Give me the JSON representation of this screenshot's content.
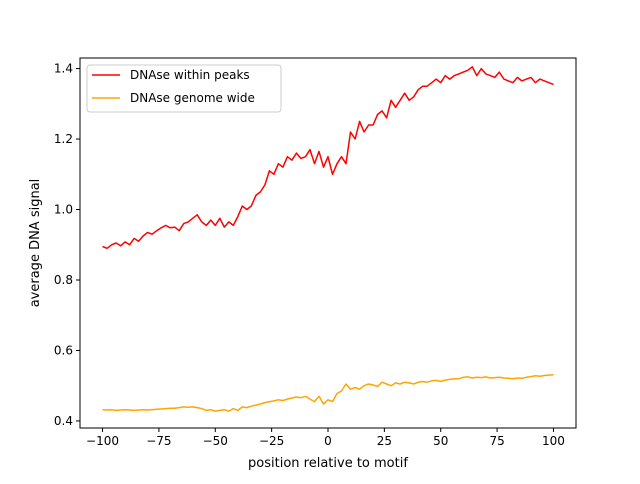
{
  "chart_data": {
    "type": "line",
    "title": "",
    "xlabel": "position relative to motif",
    "ylabel": "average DNA signal",
    "xlim": [
      -110,
      110
    ],
    "ylim": [
      0.38,
      1.43
    ],
    "grid": false,
    "legend_position": "top-left",
    "x_ticks": [
      -100,
      -75,
      -50,
      -25,
      0,
      25,
      50,
      75,
      100
    ],
    "x_tick_labels": [
      "−100",
      "−75",
      "−50",
      "−25",
      "0",
      "25",
      "50",
      "75",
      "100"
    ],
    "y_ticks": [
      0.4,
      0.6,
      0.8,
      1.0,
      1.2,
      1.4
    ],
    "y_tick_labels": [
      "0.4",
      "0.6",
      "0.8",
      "1.0",
      "1.2",
      "1.4"
    ],
    "series": [
      {
        "name": "DNAse within peaks",
        "color": "#ff0000",
        "x": [
          -100,
          -98,
          -96,
          -94,
          -92,
          -90,
          -88,
          -86,
          -84,
          -82,
          -80,
          -78,
          -76,
          -74,
          -72,
          -70,
          -68,
          -66,
          -64,
          -62,
          -60,
          -58,
          -56,
          -54,
          -52,
          -50,
          -48,
          -46,
          -44,
          -42,
          -40,
          -38,
          -36,
          -34,
          -32,
          -30,
          -28,
          -26,
          -24,
          -22,
          -20,
          -18,
          -16,
          -14,
          -12,
          -10,
          -8,
          -6,
          -4,
          -2,
          0,
          2,
          4,
          6,
          8,
          10,
          12,
          14,
          16,
          18,
          20,
          22,
          24,
          26,
          28,
          30,
          32,
          34,
          36,
          38,
          40,
          42,
          44,
          46,
          48,
          50,
          52,
          54,
          56,
          58,
          60,
          62,
          64,
          66,
          68,
          70,
          72,
          74,
          76,
          78,
          80,
          82,
          84,
          86,
          88,
          90,
          92,
          94,
          96,
          98,
          100
        ],
        "values": [
          0.895,
          0.89,
          0.9,
          0.905,
          0.897,
          0.908,
          0.9,
          0.918,
          0.91,
          0.925,
          0.935,
          0.93,
          0.94,
          0.948,
          0.955,
          0.948,
          0.95,
          0.94,
          0.96,
          0.965,
          0.975,
          0.985,
          0.965,
          0.955,
          0.97,
          0.955,
          0.975,
          0.95,
          0.965,
          0.955,
          0.98,
          1.01,
          1.0,
          1.01,
          1.04,
          1.05,
          1.07,
          1.11,
          1.1,
          1.13,
          1.12,
          1.15,
          1.14,
          1.16,
          1.145,
          1.15,
          1.17,
          1.13,
          1.165,
          1.12,
          1.15,
          1.1,
          1.13,
          1.15,
          1.13,
          1.22,
          1.2,
          1.25,
          1.22,
          1.24,
          1.24,
          1.27,
          1.28,
          1.26,
          1.31,
          1.29,
          1.31,
          1.33,
          1.31,
          1.32,
          1.34,
          1.35,
          1.35,
          1.36,
          1.37,
          1.36,
          1.38,
          1.37,
          1.38,
          1.385,
          1.39,
          1.395,
          1.405,
          1.38,
          1.4,
          1.385,
          1.38,
          1.375,
          1.39,
          1.37,
          1.365,
          1.36,
          1.375,
          1.365,
          1.37,
          1.375,
          1.36,
          1.37,
          1.365,
          1.36,
          1.355
        ]
      },
      {
        "name": "DNAse genome wide",
        "color": "#ffa500",
        "x": [
          -100,
          -98,
          -96,
          -94,
          -92,
          -90,
          -88,
          -86,
          -84,
          -82,
          -80,
          -78,
          -76,
          -74,
          -72,
          -70,
          -68,
          -66,
          -64,
          -62,
          -60,
          -58,
          -56,
          -54,
          -52,
          -50,
          -48,
          -46,
          -44,
          -42,
          -40,
          -38,
          -36,
          -34,
          -32,
          -30,
          -28,
          -26,
          -24,
          -22,
          -20,
          -18,
          -16,
          -14,
          -12,
          -10,
          -8,
          -6,
          -4,
          -2,
          0,
          2,
          4,
          6,
          8,
          10,
          12,
          14,
          16,
          18,
          20,
          22,
          24,
          26,
          28,
          30,
          32,
          34,
          36,
          38,
          40,
          42,
          44,
          46,
          48,
          50,
          52,
          54,
          56,
          58,
          60,
          62,
          64,
          66,
          68,
          70,
          72,
          74,
          76,
          78,
          80,
          82,
          84,
          86,
          88,
          90,
          92,
          94,
          96,
          98,
          100
        ],
        "values": [
          0.432,
          0.431,
          0.432,
          0.43,
          0.431,
          0.432,
          0.431,
          0.43,
          0.431,
          0.432,
          0.431,
          0.432,
          0.433,
          0.434,
          0.435,
          0.436,
          0.436,
          0.438,
          0.44,
          0.439,
          0.44,
          0.438,
          0.435,
          0.43,
          0.432,
          0.428,
          0.43,
          0.432,
          0.428,
          0.435,
          0.43,
          0.44,
          0.438,
          0.442,
          0.445,
          0.448,
          0.452,
          0.455,
          0.457,
          0.46,
          0.458,
          0.462,
          0.465,
          0.468,
          0.466,
          0.47,
          0.462,
          0.455,
          0.47,
          0.448,
          0.46,
          0.455,
          0.478,
          0.485,
          0.505,
          0.49,
          0.495,
          0.49,
          0.5,
          0.505,
          0.502,
          0.498,
          0.51,
          0.505,
          0.5,
          0.508,
          0.505,
          0.51,
          0.508,
          0.505,
          0.51,
          0.512,
          0.51,
          0.514,
          0.515,
          0.512,
          0.516,
          0.518,
          0.52,
          0.52,
          0.524,
          0.525,
          0.522,
          0.524,
          0.523,
          0.525,
          0.522,
          0.523,
          0.524,
          0.522,
          0.521,
          0.52,
          0.522,
          0.521,
          0.524,
          0.526,
          0.528,
          0.527,
          0.529,
          0.53,
          0.531
        ]
      }
    ]
  }
}
